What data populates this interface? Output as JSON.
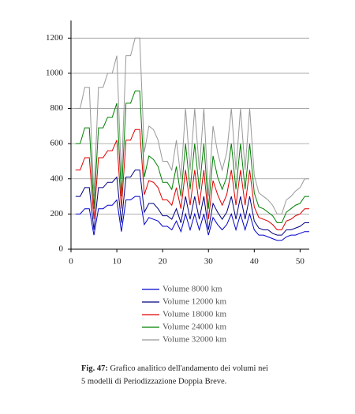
{
  "chart_data": {
    "type": "line",
    "x": [
      1,
      2,
      3,
      4,
      5,
      6,
      7,
      8,
      9,
      10,
      11,
      12,
      13,
      14,
      15,
      16,
      17,
      18,
      19,
      20,
      21,
      22,
      23,
      24,
      25,
      26,
      27,
      28,
      29,
      30,
      31,
      32,
      33,
      34,
      35,
      36,
      37,
      38,
      39,
      40,
      41,
      42,
      43,
      44,
      45,
      46,
      47,
      48,
      49,
      50,
      51,
      52
    ],
    "series": [
      {
        "name": "Volume 8000 km",
        "color": "#0000cc",
        "values": [
          200,
          200,
          230,
          230,
          80,
          230,
          230,
          250,
          250,
          280,
          100,
          280,
          280,
          300,
          300,
          140,
          180,
          170,
          160,
          130,
          130,
          110,
          160,
          100,
          200,
          110,
          200,
          110,
          200,
          80,
          180,
          140,
          110,
          140,
          200,
          110,
          200,
          110,
          200,
          110,
          80,
          80,
          70,
          60,
          50,
          50,
          70,
          80,
          80,
          90,
          100,
          100
        ]
      },
      {
        "name": "Volume 12000 km",
        "color": "#000080",
        "values": [
          300,
          300,
          350,
          350,
          110,
          350,
          350,
          380,
          380,
          410,
          150,
          410,
          410,
          450,
          450,
          210,
          260,
          260,
          230,
          190,
          190,
          170,
          230,
          150,
          300,
          170,
          300,
          170,
          300,
          110,
          260,
          210,
          170,
          210,
          300,
          170,
          300,
          170,
          300,
          160,
          120,
          110,
          110,
          90,
          80,
          80,
          110,
          110,
          120,
          130,
          150,
          150
        ]
      },
      {
        "name": "Volume 18000 km",
        "color": "#e00000",
        "values": [
          450,
          450,
          520,
          520,
          170,
          520,
          520,
          560,
          560,
          620,
          230,
          620,
          620,
          680,
          680,
          310,
          390,
          380,
          350,
          280,
          280,
          250,
          350,
          230,
          450,
          250,
          450,
          250,
          450,
          170,
          390,
          310,
          250,
          310,
          450,
          250,
          450,
          250,
          450,
          240,
          180,
          170,
          160,
          140,
          110,
          110,
          160,
          170,
          190,
          200,
          230,
          230
        ]
      },
      {
        "name": "Volume 24000 km",
        "color": "#008000",
        "values": [
          600,
          600,
          690,
          690,
          230,
          690,
          690,
          750,
          750,
          830,
          300,
          830,
          830,
          900,
          900,
          410,
          530,
          510,
          470,
          380,
          380,
          340,
          470,
          300,
          600,
          340,
          600,
          340,
          600,
          230,
          530,
          410,
          340,
          410,
          600,
          340,
          600,
          340,
          600,
          320,
          240,
          230,
          210,
          190,
          150,
          150,
          210,
          230,
          250,
          260,
          300,
          300
        ]
      },
      {
        "name": "Volume 32000 km",
        "color": "#999999",
        "values": [
          800,
          800,
          920,
          920,
          300,
          920,
          920,
          1000,
          1000,
          1100,
          400,
          1100,
          1100,
          1200,
          1200,
          550,
          700,
          680,
          620,
          500,
          500,
          450,
          620,
          400,
          800,
          450,
          800,
          450,
          800,
          300,
          700,
          550,
          450,
          550,
          800,
          450,
          800,
          450,
          800,
          420,
          320,
          300,
          280,
          250,
          200,
          200,
          280,
          300,
          330,
          350,
          400,
          400
        ]
      }
    ],
    "xlim": [
      0,
      52
    ],
    "xticks": [
      0,
      10,
      20,
      30,
      40,
      50
    ],
    "ylim": [
      0,
      1300
    ],
    "yticks": [
      0,
      200,
      400,
      600,
      800,
      1000,
      1200
    ],
    "grid": true
  },
  "caption": {
    "label": "Fig. 47:",
    "lines": [
      "Grafico analitico dell'andamento dei volumi nei",
      "5 modelli di Periodizzazione Doppia Breve."
    ]
  }
}
